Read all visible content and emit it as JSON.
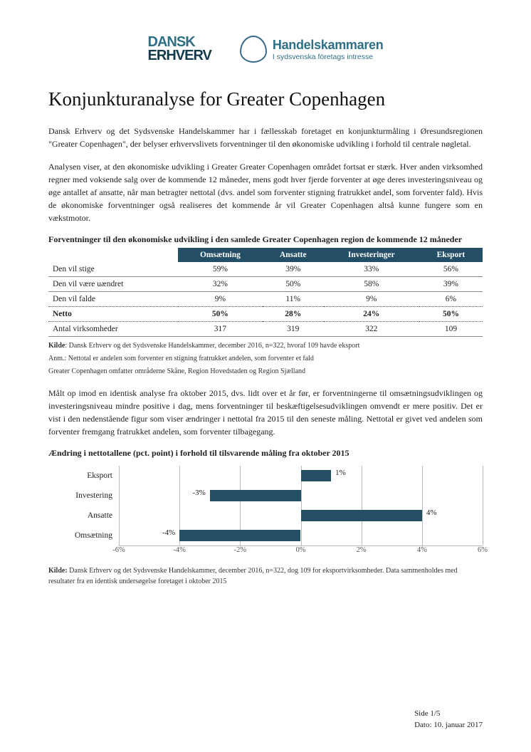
{
  "logos": {
    "dansk_line1": "DANSK",
    "dansk_line2": "ERHVERV",
    "hk_title": "Handelskammaren",
    "hk_sub": "I sydsvenska företags intresse"
  },
  "title": "Konjunkturanalyse for Greater Copenhagen",
  "para1": "Dansk Erhverv og det Sydsvenske Handelskammer har i fællesskab foretaget en konjunkturmåling i Øresundsregionen \"Greater Copenhagen\", der belyser erhvervslivets forventninger til den økonomiske udvikling i forhold til centrale nøgletal.",
  "para2": "Analysen viser, at den økonomiske udvikling i Greater Greater Copenhagen området fortsat er stærk. Hver anden virksomhed regner med voksende salg over de kommende 12 måneder, mens godt hver fjerde forventer at øge deres investeringsniveau og øge antallet af ansatte, når man betragter nettotal (dvs. andel som forventer stigning fratrukket andel, som forventer fald). Hvis de økonomiske forventninger også realiseres det kommende år vil Greater Copenhagen altså kunne fungere som en vækstmotor.",
  "table_heading": "Forventninger til den økonomiske udvikling i den samlede Greater Copenhagen region de kommende 12 måneder",
  "table": {
    "columns": [
      "",
      "Omsætning",
      "Ansatte",
      "Investeringer",
      "Eksport"
    ],
    "rows": [
      {
        "label": "Den vil stige",
        "cells": [
          "59%",
          "39%",
          "33%",
          "56%"
        ],
        "style": "solid"
      },
      {
        "label": "Den vil være uændret",
        "cells": [
          "32%",
          "50%",
          "58%",
          "39%"
        ],
        "style": "solid"
      },
      {
        "label": "Den vil falde",
        "cells": [
          "9%",
          "11%",
          "9%",
          "6%"
        ],
        "style": "dotted"
      },
      {
        "label": "Netto",
        "cells": [
          "50%",
          "28%",
          "24%",
          "50%"
        ],
        "style": "netto"
      },
      {
        "label": "Antal virksomheder",
        "cells": [
          "317",
          "319",
          "322",
          "109"
        ],
        "style": "solid"
      }
    ],
    "header_bg": "#234e66",
    "header_fg": "#ffffff"
  },
  "source1_label": "Kilde",
  "source1_text": ": Dansk Erhverv og det Sydsvenske Handelskammer, december 2016, n=322, hvoraf 109 havde eksport",
  "source1_note1": "Anm.: Nettotal er andelen som forventer en stigning fratrukket andelen, som forventer et fald",
  "source1_note2": "Greater Copenhagen omfatter områderne Skåne, Region Hovedstaden og Region Sjælland",
  "para3": "Målt op imod en identisk analyse fra oktober 2015, dvs. lidt over et år før, er forventningerne til omsætningsudviklingen og investeringsniveau mindre positive i dag, mens forventninger til beskæftigelsesudviklingen omvendt er mere positiv. Det er vist i den nedenstående figur som viser ændringer i nettotal fra 2015 til den seneste måling. Nettotal er givet ved andelen som forventer fremgang fratrukket andelen, som forventer tilbagegang.",
  "chart_heading": "Ændring i nettotallene (pct. point) i forhold til tilsvarende måling fra oktober 2015",
  "chart": {
    "type": "bar-horizontal",
    "domain_min": -6,
    "domain_max": 6,
    "ticks": [
      -6,
      -4,
      -2,
      0,
      2,
      4,
      6
    ],
    "tick_labels": [
      "-6%",
      "-4%",
      "-2%",
      "0%",
      "2%",
      "4%",
      "6%"
    ],
    "bar_color": "#234e66",
    "series": [
      {
        "label": "Eksport",
        "value": 1,
        "value_label": "1%"
      },
      {
        "label": "Investering",
        "value": -3,
        "value_label": "-3%"
      },
      {
        "label": "Ansatte",
        "value": 4,
        "value_label": "4%"
      },
      {
        "label": "Omsætning",
        "value": -4,
        "value_label": "-4%"
      }
    ]
  },
  "source2_label": "Kilde:",
  "source2_text": " Dansk Erhverv og det Sydsvenske Handelskammer, december 2016, n=322, dog 109 for eksportvirksomheder. Data sammenholdes med resultater fra en identisk undersøgelse foretaget i oktober 2015",
  "footer": {
    "page": "Side 1/5",
    "date": "Dato: 10. januar 2017"
  }
}
